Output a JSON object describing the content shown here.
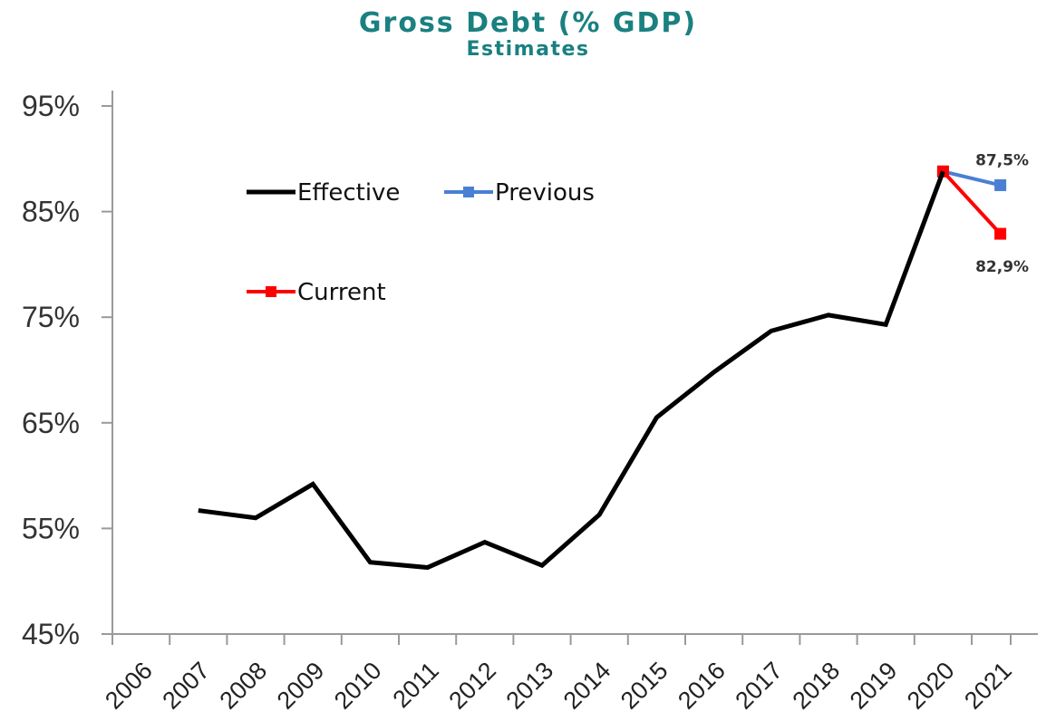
{
  "chart_data": {
    "type": "line",
    "title": "Gross Debt (% GDP)",
    "subtitle": "Estimates",
    "xlabel": "",
    "ylabel": "",
    "ylim": [
      45,
      95
    ],
    "y_ticks": [
      "45%",
      "55%",
      "65%",
      "75%",
      "85%",
      "95%"
    ],
    "categories": [
      "2006",
      "2007",
      "2008",
      "2009",
      "2010",
      "2011",
      "2012",
      "2013",
      "2014",
      "2015",
      "2016",
      "2017",
      "2018",
      "2019",
      "2020",
      "2021"
    ],
    "series": [
      {
        "name": "Effective",
        "color": "#000000",
        "marker": "none",
        "x": [
          "2007",
          "2008",
          "2009",
          "2010",
          "2011",
          "2012",
          "2013",
          "2014",
          "2015",
          "2016",
          "2017",
          "2018",
          "2019",
          "2020"
        ],
        "values": [
          56.7,
          56.0,
          59.2,
          51.8,
          51.3,
          53.7,
          51.5,
          56.3,
          65.5,
          69.8,
          73.7,
          75.2,
          74.3,
          88.8
        ]
      },
      {
        "name": "Previous",
        "color": "#4a7fd4",
        "marker": "square",
        "x": [
          "2020",
          "2021"
        ],
        "values": [
          88.8,
          87.5
        ]
      },
      {
        "name": "Current",
        "color": "#ff0000",
        "marker": "square",
        "x": [
          "2020",
          "2021"
        ],
        "values": [
          88.8,
          82.9
        ]
      }
    ],
    "annotations": [
      {
        "text": "87,5%",
        "series": "Previous",
        "x": "2021"
      },
      {
        "text": "82,9%",
        "series": "Current",
        "x": "2021"
      }
    ],
    "legend_position": "upper-left",
    "grid": false
  }
}
